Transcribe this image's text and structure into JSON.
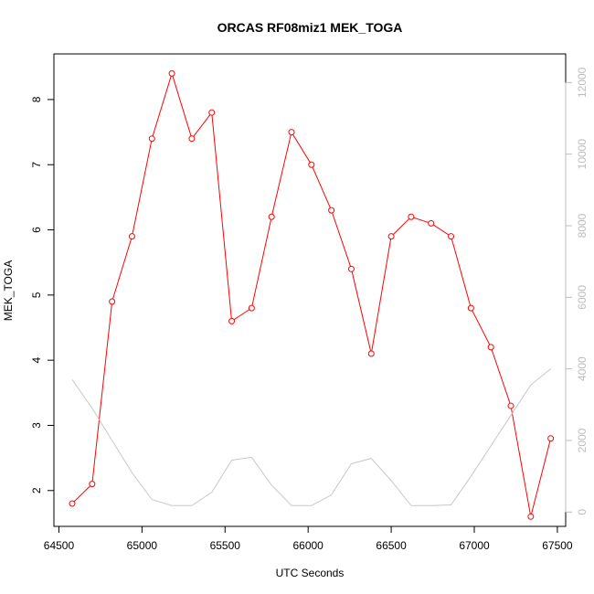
{
  "chart_data": {
    "type": "line",
    "title": "ORCAS RF08miz1 MEK_TOGA",
    "xlabel": "UTC Seconds",
    "ylabel": "MEK_TOGA",
    "xlim": [
      64470,
      67550
    ],
    "ylim": [
      1.45,
      8.7
    ],
    "y2lim": [
      -400,
      12800
    ],
    "x_ticks": [
      64500,
      65000,
      65500,
      66000,
      66500,
      67000,
      67500
    ],
    "y_ticks": [
      2,
      3,
      4,
      5,
      6,
      7,
      8
    ],
    "y2_ticks": [
      0,
      2000,
      4000,
      6000,
      8000,
      10000,
      12000
    ],
    "series": [
      {
        "axis": "left",
        "color": "#ff0000",
        "marker": "open-circle",
        "x": [
          64580,
          64700,
          64820,
          64940,
          65060,
          65180,
          65300,
          65420,
          65540,
          65660,
          65780,
          65900,
          66020,
          66140,
          66260,
          66380,
          66500,
          66620,
          66740,
          66860,
          66980,
          67100,
          67220,
          67340,
          67460
        ],
        "values": [
          1.8,
          2.1,
          4.9,
          5.9,
          7.4,
          8.4,
          7.4,
          7.8,
          4.6,
          4.8,
          6.2,
          7.5,
          7.0,
          6.3,
          5.4,
          4.1,
          5.9,
          6.2,
          6.1,
          5.9,
          4.8,
          4.2,
          3.3,
          1.6,
          2.8
        ]
      },
      {
        "axis": "right",
        "color": "#c8c8c8",
        "marker": "none",
        "x": [
          64580,
          64700,
          64820,
          64940,
          65060,
          65180,
          65300,
          65420,
          65540,
          65660,
          65780,
          65900,
          66020,
          66140,
          66260,
          66380,
          66500,
          66620,
          66740,
          66860,
          66980,
          67100,
          67220,
          67340,
          67460
        ],
        "values": [
          3700,
          2900,
          2000,
          1100,
          350,
          180,
          180,
          550,
          1450,
          1530,
          750,
          180,
          180,
          480,
          1350,
          1500,
          880,
          180,
          180,
          200,
          1000,
          1850,
          2700,
          3550,
          4000
        ]
      }
    ]
  }
}
